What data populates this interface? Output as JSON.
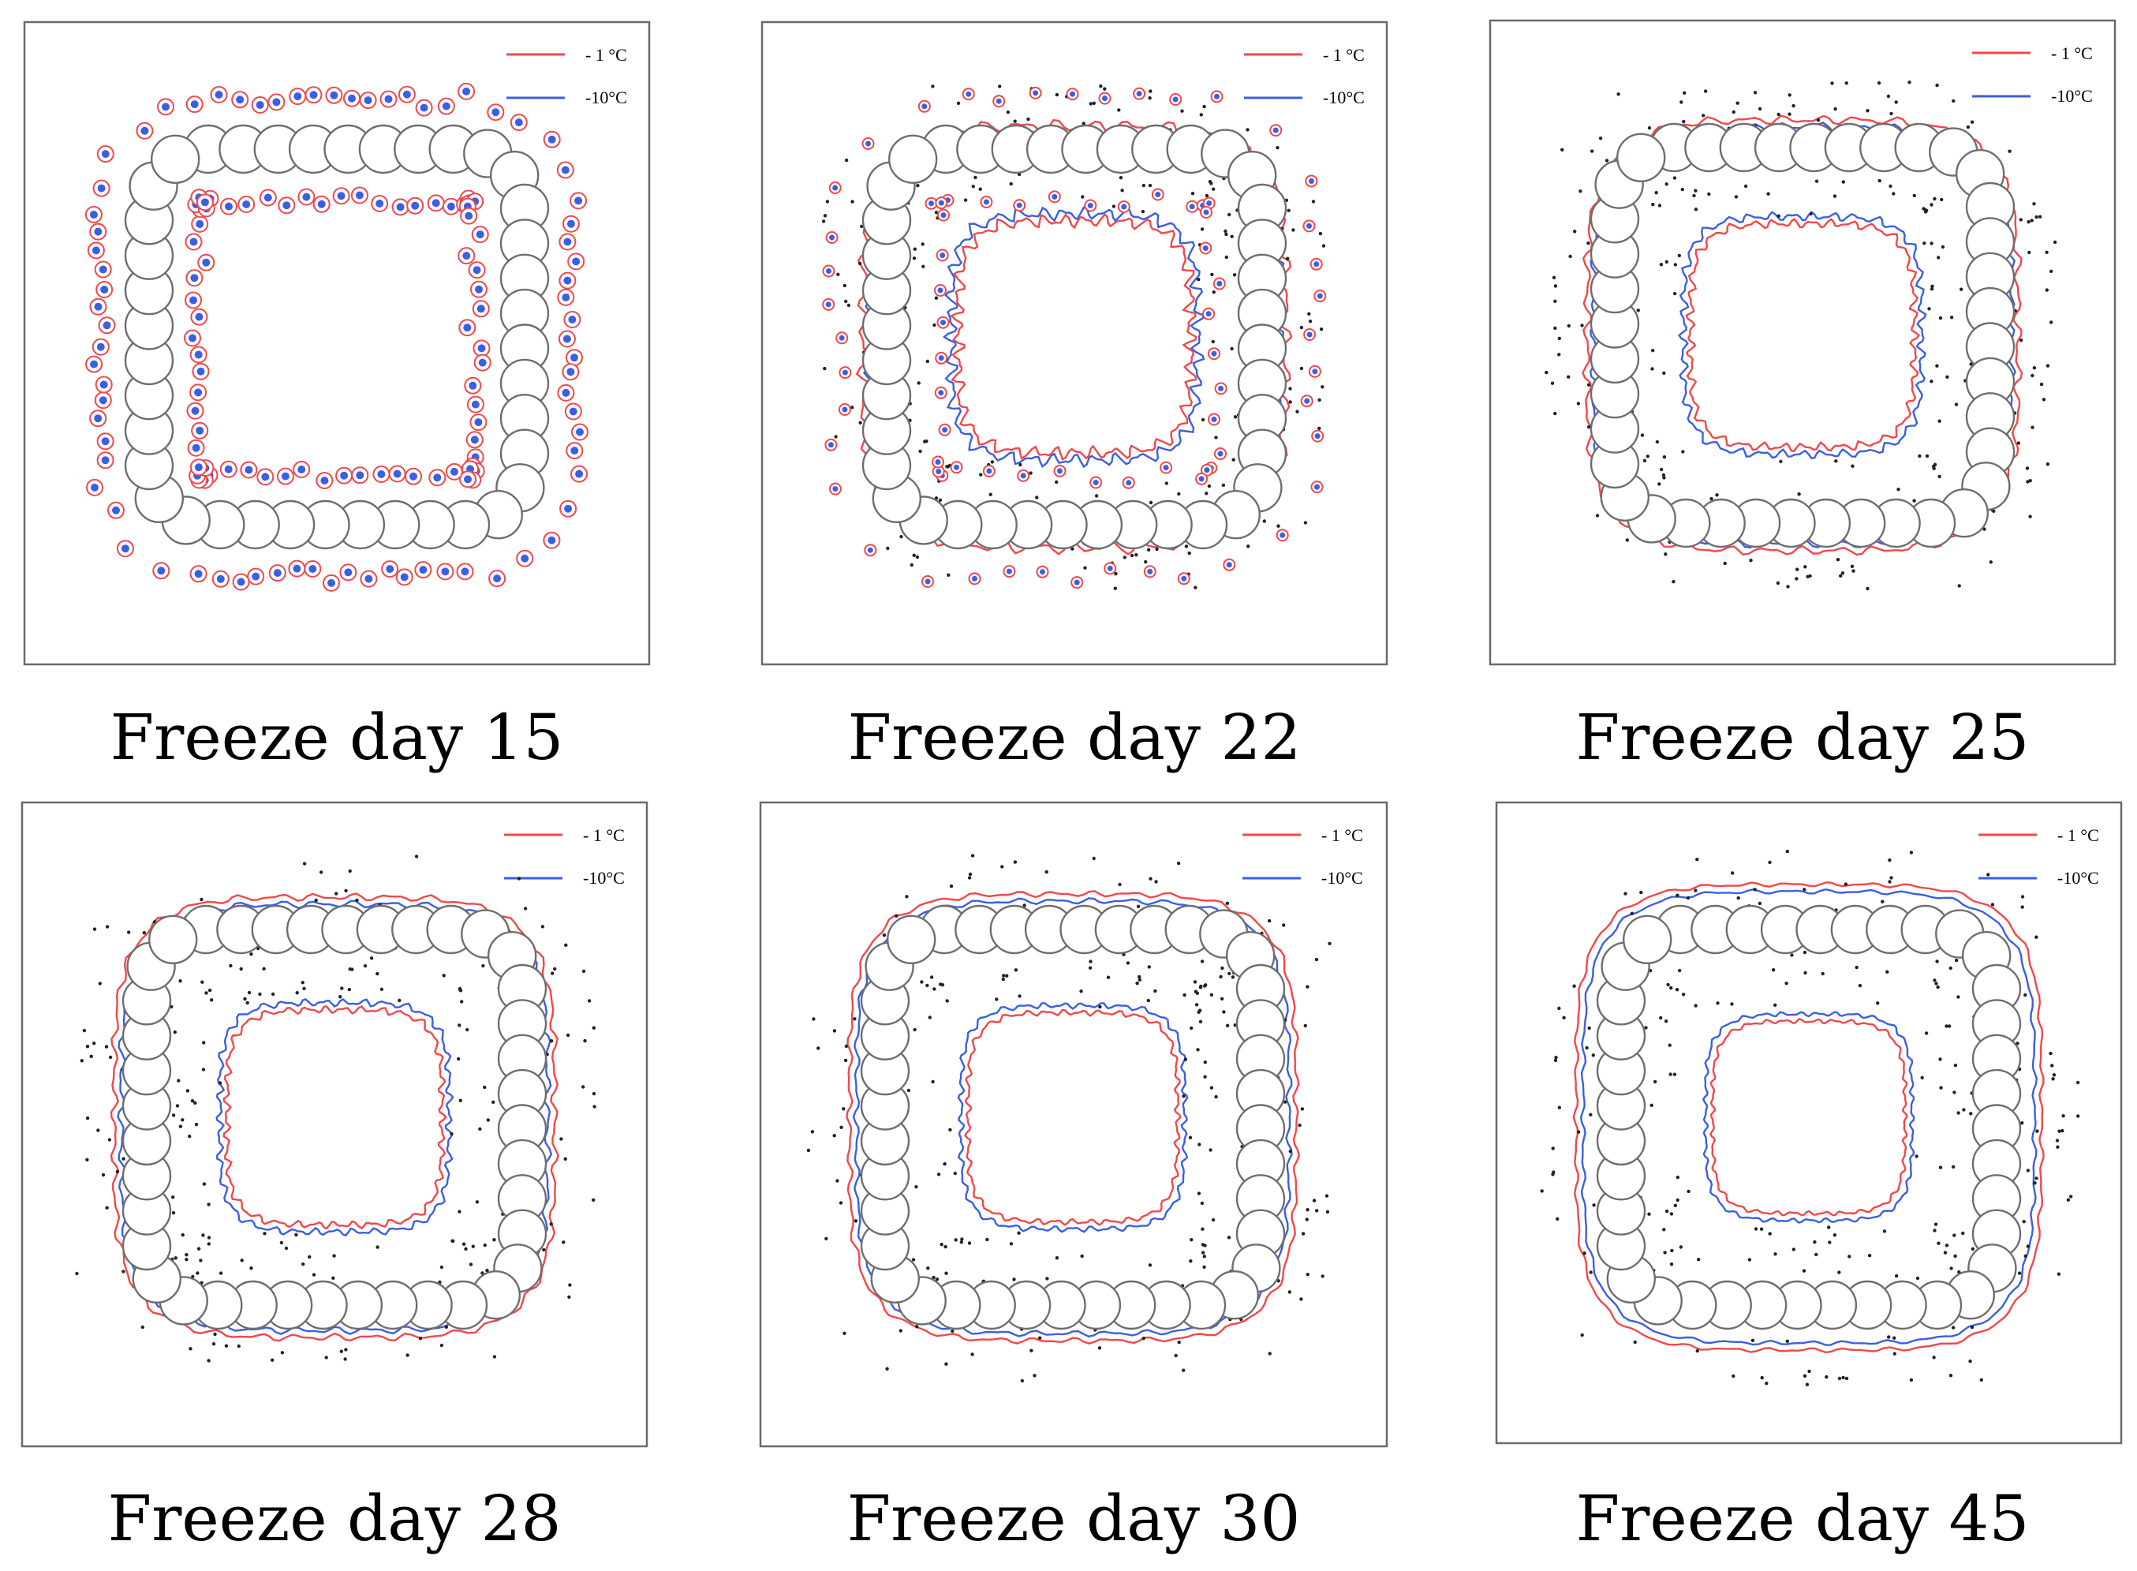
{
  "legend": {
    "warm_label": "- 1 °C",
    "cold_label": "-10°C"
  },
  "colors": {
    "warm": "#f2474b",
    "cold": "#3b5fe0",
    "pile": "#6e6e6e",
    "frame": "#6a6a6a"
  },
  "panels": [
    {
      "caption": "Freeze day 15",
      "stage": 0
    },
    {
      "caption": "Freeze day 22",
      "stage": 1
    },
    {
      "caption": "Freeze day 25",
      "stage": 2
    },
    {
      "caption": "Freeze day 28",
      "stage": 3
    },
    {
      "caption": "Freeze day 30",
      "stage": 4
    },
    {
      "caption": "Freeze day 45",
      "stage": 5
    }
  ]
}
